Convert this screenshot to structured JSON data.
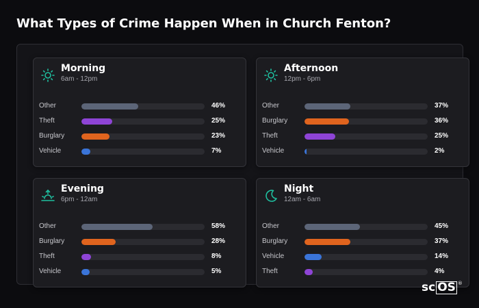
{
  "title": "What Types of Crime Happen When in Church Fenton?",
  "colors": {
    "other": "#5c6578",
    "theft": "#8e44d6",
    "burglary": "#e0641e",
    "vehicle": "#3a74d8",
    "icon_accent": "#1fc0a0"
  },
  "logo": {
    "prefix": "sc",
    "boxed": "OS",
    "mark": "®"
  },
  "chart_data": {
    "type": "bar",
    "orientation": "horizontal",
    "unit": "%",
    "xlim": [
      0,
      100
    ],
    "panels": [
      {
        "name": "Morning",
        "subtitle": "6am - 12pm",
        "icon": "sun-icon",
        "items": [
          {
            "label": "Other",
            "value": 46,
            "display": "46%",
            "color_key": "other"
          },
          {
            "label": "Theft",
            "value": 25,
            "display": "25%",
            "color_key": "theft"
          },
          {
            "label": "Burglary",
            "value": 23,
            "display": "23%",
            "color_key": "burglary"
          },
          {
            "label": "Vehicle",
            "value": 7,
            "display": "7%",
            "color_key": "vehicle"
          }
        ]
      },
      {
        "name": "Afternoon",
        "subtitle": "12pm - 6pm",
        "icon": "sun-icon",
        "items": [
          {
            "label": "Other",
            "value": 37,
            "display": "37%",
            "color_key": "other"
          },
          {
            "label": "Burglary",
            "value": 36,
            "display": "36%",
            "color_key": "burglary"
          },
          {
            "label": "Theft",
            "value": 25,
            "display": "25%",
            "color_key": "theft"
          },
          {
            "label": "Vehicle",
            "value": 2,
            "display": "2%",
            "color_key": "vehicle"
          }
        ]
      },
      {
        "name": "Evening",
        "subtitle": "6pm - 12am",
        "icon": "sunset-icon",
        "items": [
          {
            "label": "Other",
            "value": 58,
            "display": "58%",
            "color_key": "other"
          },
          {
            "label": "Burglary",
            "value": 28,
            "display": "28%",
            "color_key": "burglary"
          },
          {
            "label": "Theft",
            "value": 8,
            "display": "8%",
            "color_key": "theft"
          },
          {
            "label": "Vehicle",
            "value": 5,
            "display": "5%",
            "color_key": "vehicle"
          }
        ]
      },
      {
        "name": "Night",
        "subtitle": "12am - 6am",
        "icon": "moon-icon",
        "items": [
          {
            "label": "Other",
            "value": 45,
            "display": "45%",
            "color_key": "other"
          },
          {
            "label": "Burglary",
            "value": 37,
            "display": "37%",
            "color_key": "burglary"
          },
          {
            "label": "Vehicle",
            "value": 14,
            "display": "14%",
            "color_key": "vehicle"
          },
          {
            "label": "Theft",
            "value": 4,
            "display": "4%",
            "color_key": "theft"
          }
        ]
      }
    ]
  }
}
